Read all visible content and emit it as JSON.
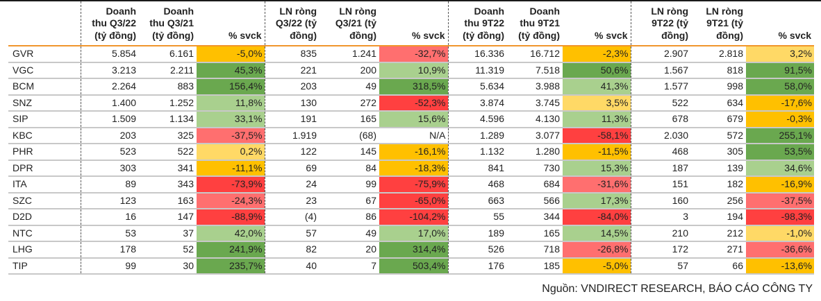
{
  "headers": [
    "",
    "Doanh thu Q3/22 (tỷ đồng)",
    "Doanh thu Q3/21 (tỷ đồng)",
    "% svck",
    "LN ròng Q3/22 (tỷ đồng)",
    "LN ròng Q3/21 (tỷ đồng)",
    "% svck",
    "Doanh thu 9T22 (tỷ đồng)",
    "Doanh thu 9T21 (tỷ đồng)",
    "% svck",
    "LN ròng 9T22 (tỷ đồng)",
    "LN ròng 9T21 (tỷ đồng)",
    "% svck"
  ],
  "header_lines": [
    [],
    [
      "Doanh",
      "thu Q3/22",
      "(tỷ đồng)"
    ],
    [
      "Doanh",
      "thu Q3/21",
      "(tỷ đồng)"
    ],
    [
      "% svck"
    ],
    [
      "LN ròng",
      "Q3/22 (tỷ",
      "đồng)"
    ],
    [
      "LN ròng",
      "Q3/21 (tỷ",
      "đồng)"
    ],
    [
      "% svck"
    ],
    [
      "Doanh",
      "thu 9T22",
      "(tỷ đồng)"
    ],
    [
      "Doanh",
      "thu 9T21",
      "(tỷ đồng)"
    ],
    [
      "% svck"
    ],
    [
      "LN ròng",
      "9T22 (tỷ",
      "đồng)"
    ],
    [
      "LN ròng",
      "9T21 (tỷ",
      "đồng)"
    ],
    [
      "% svck"
    ]
  ],
  "colors": {
    "dark_green": "#6aa84f",
    "light_green": "#a9d08e",
    "light_yellow": "#ffd966",
    "amber": "#ffc000",
    "light_red": "#ff6f6f",
    "red": "#ff4040",
    "none": "transparent",
    "header_rule": "#f0952c",
    "row_rule": "#c8c8c8"
  },
  "rows": [
    {
      "ticker": "GVR",
      "rev_q322": "5.854",
      "rev_q321": "6.161",
      "rev_q_pct": "-5,0%",
      "rev_q_col": "amber",
      "np_q322": "835",
      "np_q321": "1.241",
      "np_q_pct": "-32,7%",
      "np_q_col": "light_red",
      "rev_9t22": "16.336",
      "rev_9t21": "16.712",
      "rev_9t_pct": "-2,3%",
      "rev_9t_col": "amber",
      "np_9t22": "2.907",
      "np_9t21": "2.818",
      "np_9t_pct": "3,2%",
      "np_9t_col": "light_yellow"
    },
    {
      "ticker": "VGC",
      "rev_q322": "3.213",
      "rev_q321": "2.211",
      "rev_q_pct": "45,3%",
      "rev_q_col": "dark_green",
      "np_q322": "221",
      "np_q321": "200",
      "np_q_pct": "10,9%",
      "np_q_col": "light_green",
      "rev_9t22": "11.319",
      "rev_9t21": "7.518",
      "rev_9t_pct": "50,6%",
      "rev_9t_col": "dark_green",
      "np_9t22": "1.567",
      "np_9t21": "818",
      "np_9t_pct": "91,5%",
      "np_9t_col": "dark_green"
    },
    {
      "ticker": "BCM",
      "rev_q322": "2.264",
      "rev_q321": "883",
      "rev_q_pct": "156,4%",
      "rev_q_col": "dark_green",
      "np_q322": "203",
      "np_q321": "49",
      "np_q_pct": "318,5%",
      "np_q_col": "dark_green",
      "rev_9t22": "5.634",
      "rev_9t21": "3.988",
      "rev_9t_pct": "41,3%",
      "rev_9t_col": "light_green",
      "np_9t22": "1.577",
      "np_9t21": "998",
      "np_9t_pct": "58,0%",
      "np_9t_col": "dark_green"
    },
    {
      "ticker": "SNZ",
      "rev_q322": "1.400",
      "rev_q321": "1.252",
      "rev_q_pct": "11,8%",
      "rev_q_col": "light_green",
      "np_q322": "130",
      "np_q321": "272",
      "np_q_pct": "-52,3%",
      "np_q_col": "red",
      "rev_9t22": "3.874",
      "rev_9t21": "3.745",
      "rev_9t_pct": "3,5%",
      "rev_9t_col": "light_yellow",
      "np_9t22": "522",
      "np_9t21": "634",
      "np_9t_pct": "-17,6%",
      "np_9t_col": "amber"
    },
    {
      "ticker": "SIP",
      "rev_q322": "1.509",
      "rev_q321": "1.134",
      "rev_q_pct": "33,1%",
      "rev_q_col": "light_green",
      "np_q322": "191",
      "np_q321": "165",
      "np_q_pct": "15,6%",
      "np_q_col": "light_green",
      "rev_9t22": "4.596",
      "rev_9t21": "4.130",
      "rev_9t_pct": "11,3%",
      "rev_9t_col": "light_green",
      "np_9t22": "678",
      "np_9t21": "679",
      "np_9t_pct": "-0,3%",
      "np_9t_col": "amber"
    },
    {
      "ticker": "KBC",
      "rev_q322": "203",
      "rev_q321": "325",
      "rev_q_pct": "-37,5%",
      "rev_q_col": "light_red",
      "np_q322": "1.919",
      "np_q321": "(68)",
      "np_q_pct": "N/A",
      "np_q_col": "none",
      "rev_9t22": "1.289",
      "rev_9t21": "3.077",
      "rev_9t_pct": "-58,1%",
      "rev_9t_col": "red",
      "np_9t22": "2.030",
      "np_9t21": "572",
      "np_9t_pct": "255,1%",
      "np_9t_col": "dark_green"
    },
    {
      "ticker": "PHR",
      "rev_q322": "523",
      "rev_q321": "522",
      "rev_q_pct": "0,2%",
      "rev_q_col": "light_yellow",
      "np_q322": "122",
      "np_q321": "145",
      "np_q_pct": "-16,1%",
      "np_q_col": "amber",
      "rev_9t22": "1.132",
      "rev_9t21": "1.280",
      "rev_9t_pct": "-11,5%",
      "rev_9t_col": "amber",
      "np_9t22": "468",
      "np_9t21": "305",
      "np_9t_pct": "53,5%",
      "np_9t_col": "dark_green"
    },
    {
      "ticker": "DPR",
      "rev_q322": "303",
      "rev_q321": "341",
      "rev_q_pct": "-11,1%",
      "rev_q_col": "amber",
      "np_q322": "69",
      "np_q321": "84",
      "np_q_pct": "-18,3%",
      "np_q_col": "amber",
      "rev_9t22": "841",
      "rev_9t21": "730",
      "rev_9t_pct": "15,3%",
      "rev_9t_col": "light_green",
      "np_9t22": "187",
      "np_9t21": "139",
      "np_9t_pct": "34,6%",
      "np_9t_col": "light_green"
    },
    {
      "ticker": "ITA",
      "rev_q322": "89",
      "rev_q321": "343",
      "rev_q_pct": "-73,9%",
      "rev_q_col": "red",
      "np_q322": "24",
      "np_q321": "99",
      "np_q_pct": "-75,9%",
      "np_q_col": "red",
      "rev_9t22": "468",
      "rev_9t21": "684",
      "rev_9t_pct": "-31,6%",
      "rev_9t_col": "light_red",
      "np_9t22": "151",
      "np_9t21": "182",
      "np_9t_pct": "-16,9%",
      "np_9t_col": "amber"
    },
    {
      "ticker": "SZC",
      "rev_q322": "123",
      "rev_q321": "163",
      "rev_q_pct": "-24,3%",
      "rev_q_col": "light_red",
      "np_q322": "23",
      "np_q321": "67",
      "np_q_pct": "-65,0%",
      "np_q_col": "red",
      "rev_9t22": "663",
      "rev_9t21": "566",
      "rev_9t_pct": "17,3%",
      "rev_9t_col": "light_green",
      "np_9t22": "160",
      "np_9t21": "256",
      "np_9t_pct": "-37,5%",
      "np_9t_col": "light_red"
    },
    {
      "ticker": "D2D",
      "rev_q322": "16",
      "rev_q321": "147",
      "rev_q_pct": "-88,9%",
      "rev_q_col": "red",
      "np_q322": "(4)",
      "np_q321": "86",
      "np_q_pct": "-104,2%",
      "np_q_col": "red",
      "rev_9t22": "55",
      "rev_9t21": "344",
      "rev_9t_pct": "-84,0%",
      "rev_9t_col": "red",
      "np_9t22": "3",
      "np_9t21": "194",
      "np_9t_pct": "-98,3%",
      "np_9t_col": "red"
    },
    {
      "ticker": "NTC",
      "rev_q322": "53",
      "rev_q321": "37",
      "rev_q_pct": "42,0%",
      "rev_q_col": "light_green",
      "np_q322": "57",
      "np_q321": "49",
      "np_q_pct": "17,0%",
      "np_q_col": "light_green",
      "rev_9t22": "189",
      "rev_9t21": "165",
      "rev_9t_pct": "14,5%",
      "rev_9t_col": "light_green",
      "np_9t22": "210",
      "np_9t21": "212",
      "np_9t_pct": "-1,0%",
      "np_9t_col": "light_yellow"
    },
    {
      "ticker": "LHG",
      "rev_q322": "178",
      "rev_q321": "52",
      "rev_q_pct": "241,9%",
      "rev_q_col": "dark_green",
      "np_q322": "82",
      "np_q321": "20",
      "np_q_pct": "314,4%",
      "np_q_col": "dark_green",
      "rev_9t22": "526",
      "rev_9t21": "718",
      "rev_9t_pct": "-26,8%",
      "rev_9t_col": "light_red",
      "np_9t22": "172",
      "np_9t21": "271",
      "np_9t_pct": "-36,6%",
      "np_9t_col": "light_red"
    },
    {
      "ticker": "TIP",
      "rev_q322": "99",
      "rev_q321": "30",
      "rev_q_pct": "235,7%",
      "rev_q_col": "dark_green",
      "np_q322": "40",
      "np_q321": "7",
      "np_q_pct": "503,4%",
      "np_q_col": "dark_green",
      "rev_9t22": "176",
      "rev_9t21": "185",
      "rev_9t_pct": "-5,0%",
      "rev_9t_col": "amber",
      "np_9t22": "57",
      "np_9t21": "66",
      "np_9t_pct": "-13,6%",
      "np_9t_col": "amber"
    }
  ],
  "footer": "Nguồn: VNDIRECT RESEARCH, BÁO CÁO CÔNG TY"
}
